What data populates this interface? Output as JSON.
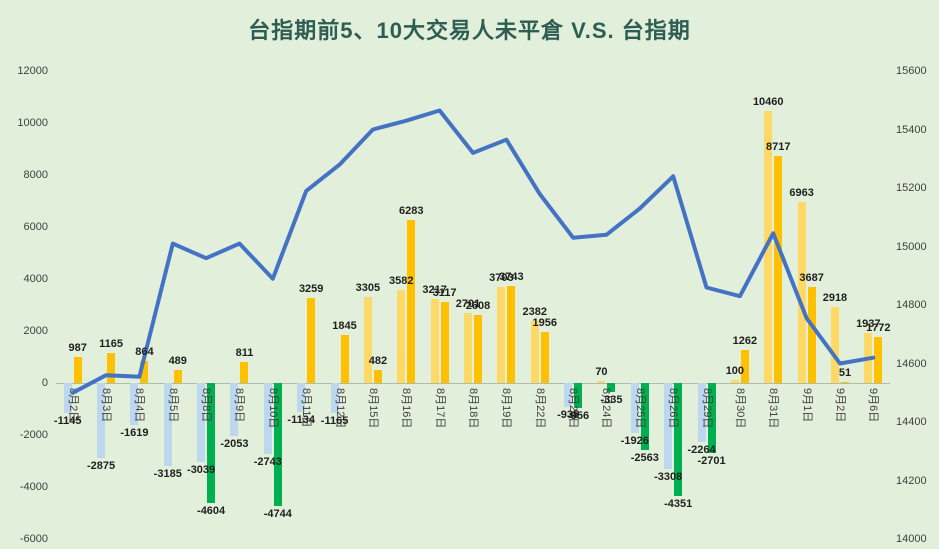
{
  "colors": {
    "background": "#E2EFDA",
    "title_text": "#2D5D53",
    "axis_text": "#3F3F3F",
    "data_label_text": "#1F1F1F",
    "line": "#4472C4",
    "series1_positive": "#FFD966",
    "series1_negative": "#BDD7EE",
    "series2_positive": "#FFC000",
    "series2_negative": "#00B050"
  },
  "chart_data": {
    "type": "bar+line combo",
    "title": "台指期前5、10大交易人未平倉 V.S. 台指期",
    "categories": [
      "8月2日",
      "8月3日",
      "8月4日",
      "8月5日",
      "8月8日",
      "8月9日",
      "8月10日",
      "8月11日",
      "8月12日",
      "8月15日",
      "8月16日",
      "8月17日",
      "8月18日",
      "8月19日",
      "8月22日",
      "8月23日",
      "8月24日",
      "8月25日",
      "8月26日",
      "8月29日",
      "8月30日",
      "8月31日",
      "9月1日",
      "9月2日",
      "9月6日"
    ],
    "series": [
      {
        "name": "前5大交易人未平倉",
        "type": "bar",
        "axis": "left",
        "values": [
          -1145,
          -2875,
          -1619,
          -3185,
          -3039,
          -2053,
          -2743,
          -1134,
          -1165,
          3305,
          3582,
          3217,
          2701,
          3703,
          2382,
          -935,
          70,
          -1926,
          -3308,
          -2264,
          100,
          10460,
          6963,
          2918,
          1937
        ]
      },
      {
        "name": "前10大交易人未平倉",
        "type": "bar",
        "axis": "left",
        "values": [
          987,
          1165,
          864,
          489,
          -4604,
          811,
          -4744,
          3259,
          1845,
          482,
          6283,
          3117,
          2608,
          3743,
          1956,
          -956,
          -335,
          -2563,
          -4351,
          -2701,
          1262,
          8717,
          3687,
          51,
          1772
        ]
      },
      {
        "name": "台指期",
        "type": "line",
        "axis": "right",
        "values": [
          14500,
          14560,
          14555,
          15010,
          14960,
          15010,
          14890,
          15190,
          15280,
          15400,
          15430,
          15465,
          15320,
          15365,
          15180,
          15030,
          15040,
          15130,
          15240,
          14860,
          14830,
          15045,
          14755,
          14600,
          14620
        ]
      }
    ],
    "left_axis": {
      "min": -6000,
      "max": 12000,
      "step": 2000,
      "tick_labels": [
        "12000",
        "10000",
        "8000",
        "6000",
        "4000",
        "2000",
        "0",
        "-2000",
        "-4000",
        "-6000"
      ]
    },
    "right_axis": {
      "min": 14000,
      "max": 15600,
      "step": 200,
      "tick_labels": [
        "15600",
        "15400",
        "15200",
        "15000",
        "14800",
        "14600",
        "14400",
        "14200",
        "14000"
      ]
    },
    "legend": "none",
    "gridlines": false,
    "data_labels": "bold, above positive bars and below negative bars",
    "category_label_rotation_deg": 90
  }
}
